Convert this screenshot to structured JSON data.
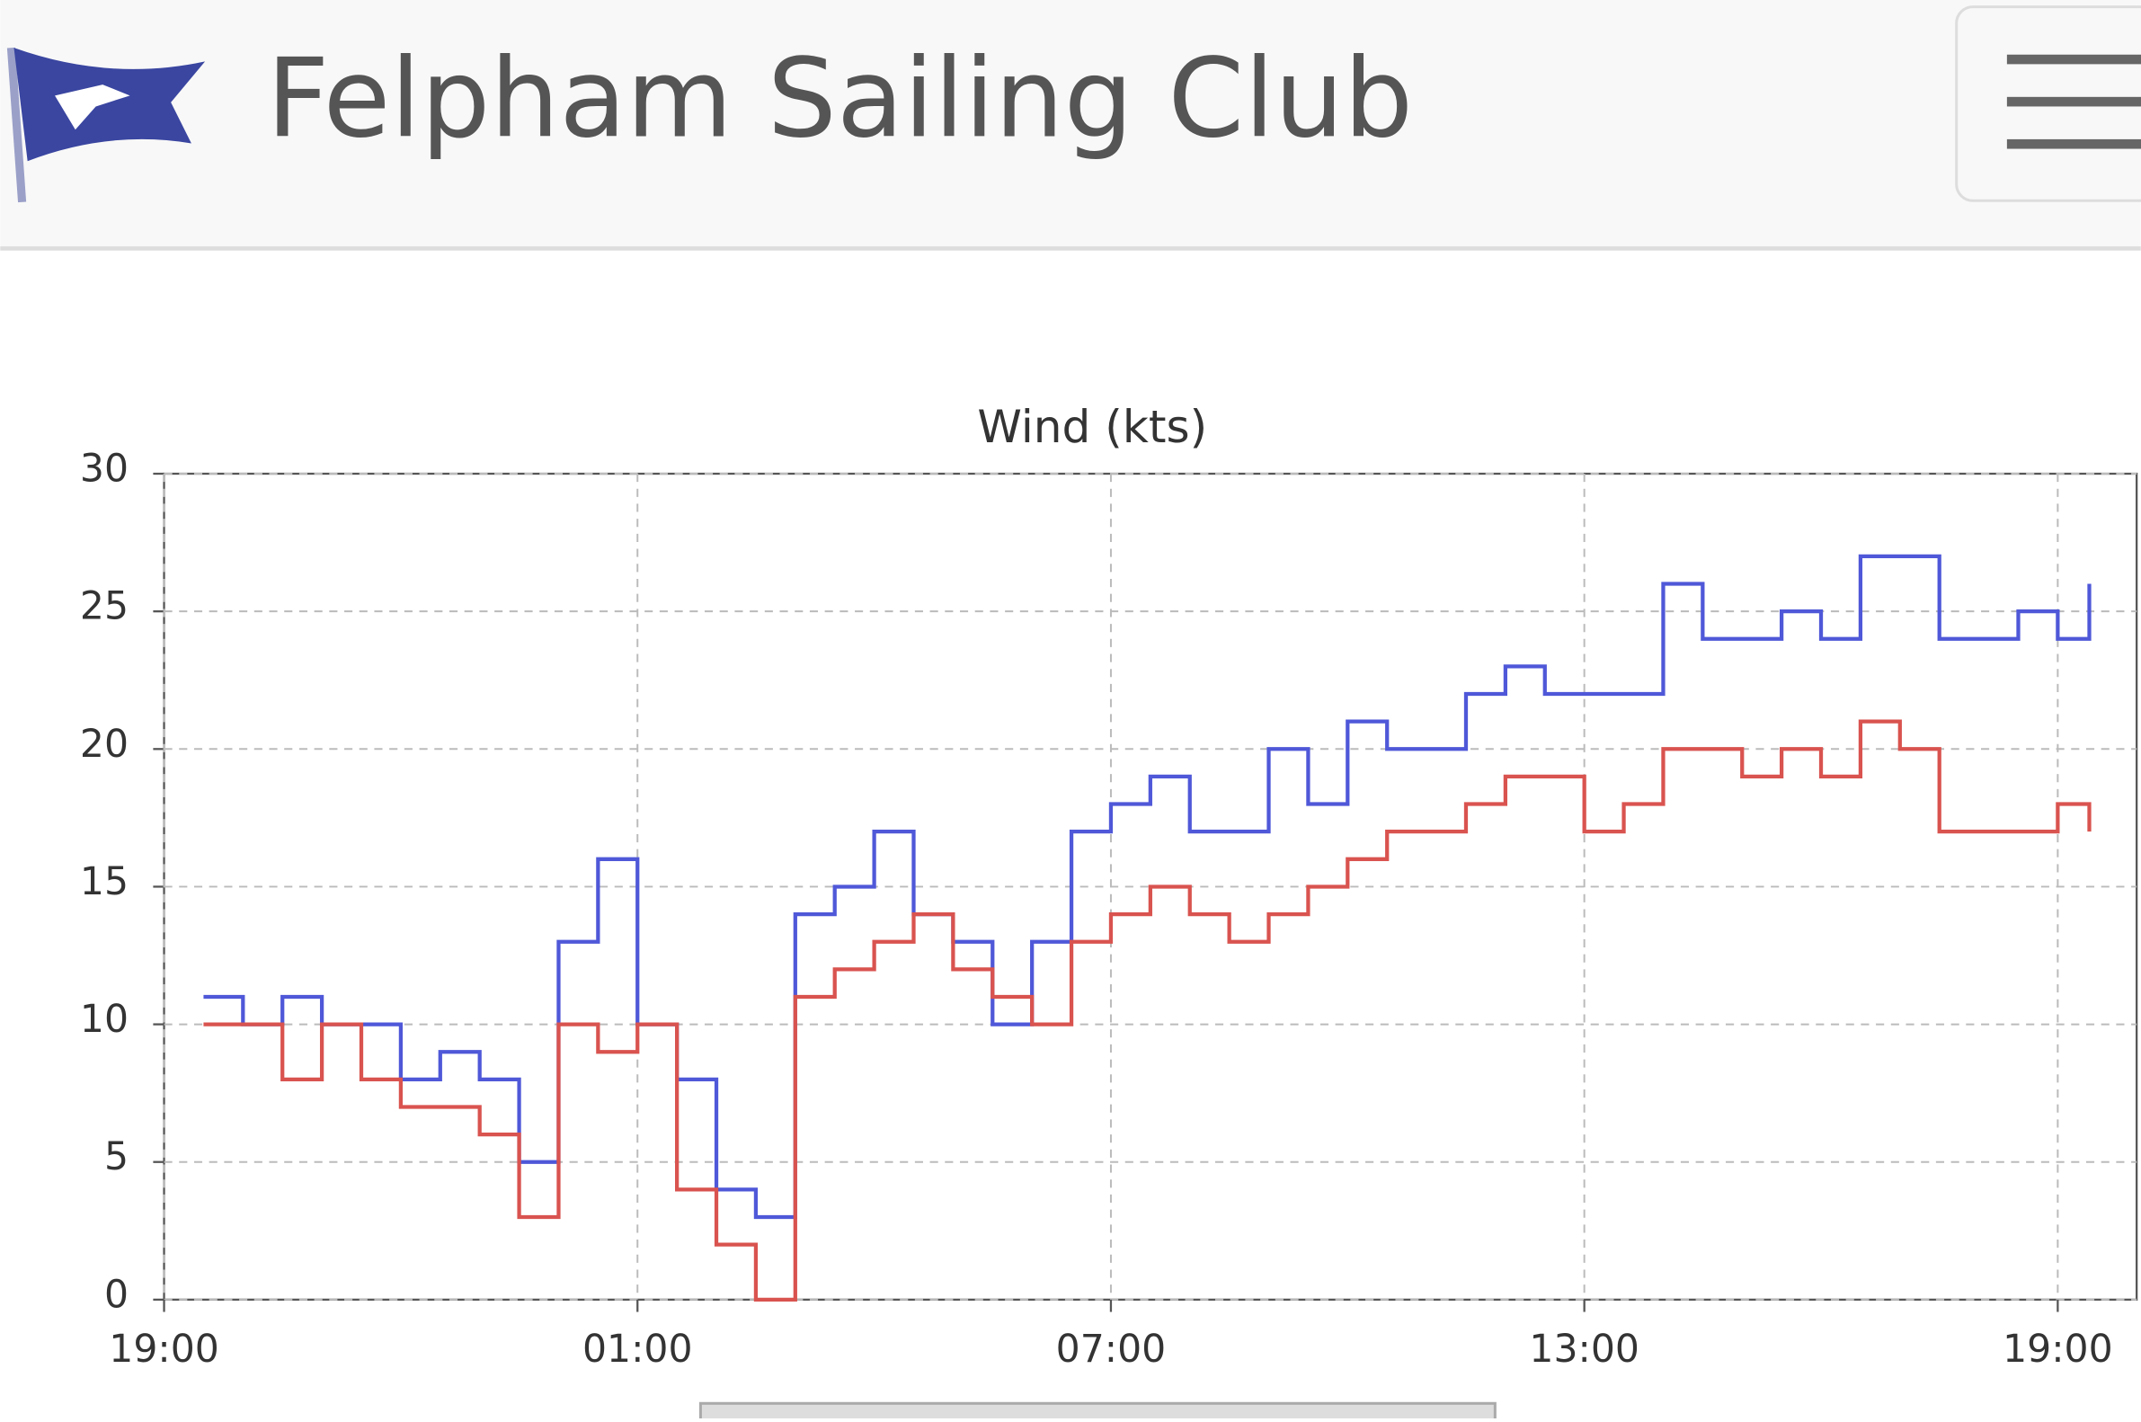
{
  "header": {
    "title": "Felpham Sailing Club"
  },
  "chart_data": {
    "type": "line",
    "title": "Wind (kts)",
    "x": [
      0.5,
      1,
      1.5,
      2,
      2.5,
      3,
      3.5,
      4,
      4.5,
      5,
      5.5,
      6,
      6.5,
      7,
      7.5,
      8,
      8.5,
      9,
      9.5,
      10,
      10.5,
      11,
      11.5,
      12,
      12.5,
      13,
      13.5,
      14,
      14.5,
      15,
      15.5,
      16,
      16.5,
      17,
      17.5,
      18,
      18.5,
      19,
      19.5,
      20,
      20.5,
      21,
      21.5,
      22,
      22.5,
      23,
      23.5,
      24,
      24.4
    ],
    "series": [
      {
        "color": "#4f58d8",
        "values": [
          11,
          10,
          11,
          10,
          10,
          8,
          9,
          8,
          5,
          13,
          16,
          10,
          8,
          4,
          3,
          14,
          15,
          17,
          14,
          13,
          10,
          13,
          17,
          18,
          19,
          17,
          17,
          20,
          18,
          21,
          20,
          20,
          22,
          23,
          22,
          22,
          22,
          26,
          24,
          24,
          25,
          24,
          27,
          27,
          24,
          24,
          25,
          24,
          26
        ]
      },
      {
        "color": "#d9534f",
        "values": [
          10,
          10,
          8,
          10,
          8,
          7,
          7,
          6,
          3,
          10,
          9,
          10,
          4,
          2,
          0,
          11,
          12,
          13,
          14,
          12,
          11,
          10,
          13,
          14,
          15,
          14,
          13,
          14,
          15,
          16,
          17,
          17,
          18,
          19,
          19,
          17,
          18,
          20,
          20,
          19,
          20,
          19,
          21,
          20,
          17,
          17,
          17,
          18,
          17
        ]
      }
    ],
    "xlim": [
      0,
      25
    ],
    "xticks": [
      {
        "value": 0,
        "label": "19:00"
      },
      {
        "value": 6,
        "label": "01:00"
      },
      {
        "value": 12,
        "label": "07:00"
      },
      {
        "value": 18,
        "label": "13:00"
      },
      {
        "value": 24,
        "label": "19:00"
      }
    ],
    "ylim": [
      0,
      30
    ],
    "yticks": [
      0,
      5,
      10,
      15,
      20,
      25,
      30
    ],
    "grid": true,
    "step": true
  }
}
